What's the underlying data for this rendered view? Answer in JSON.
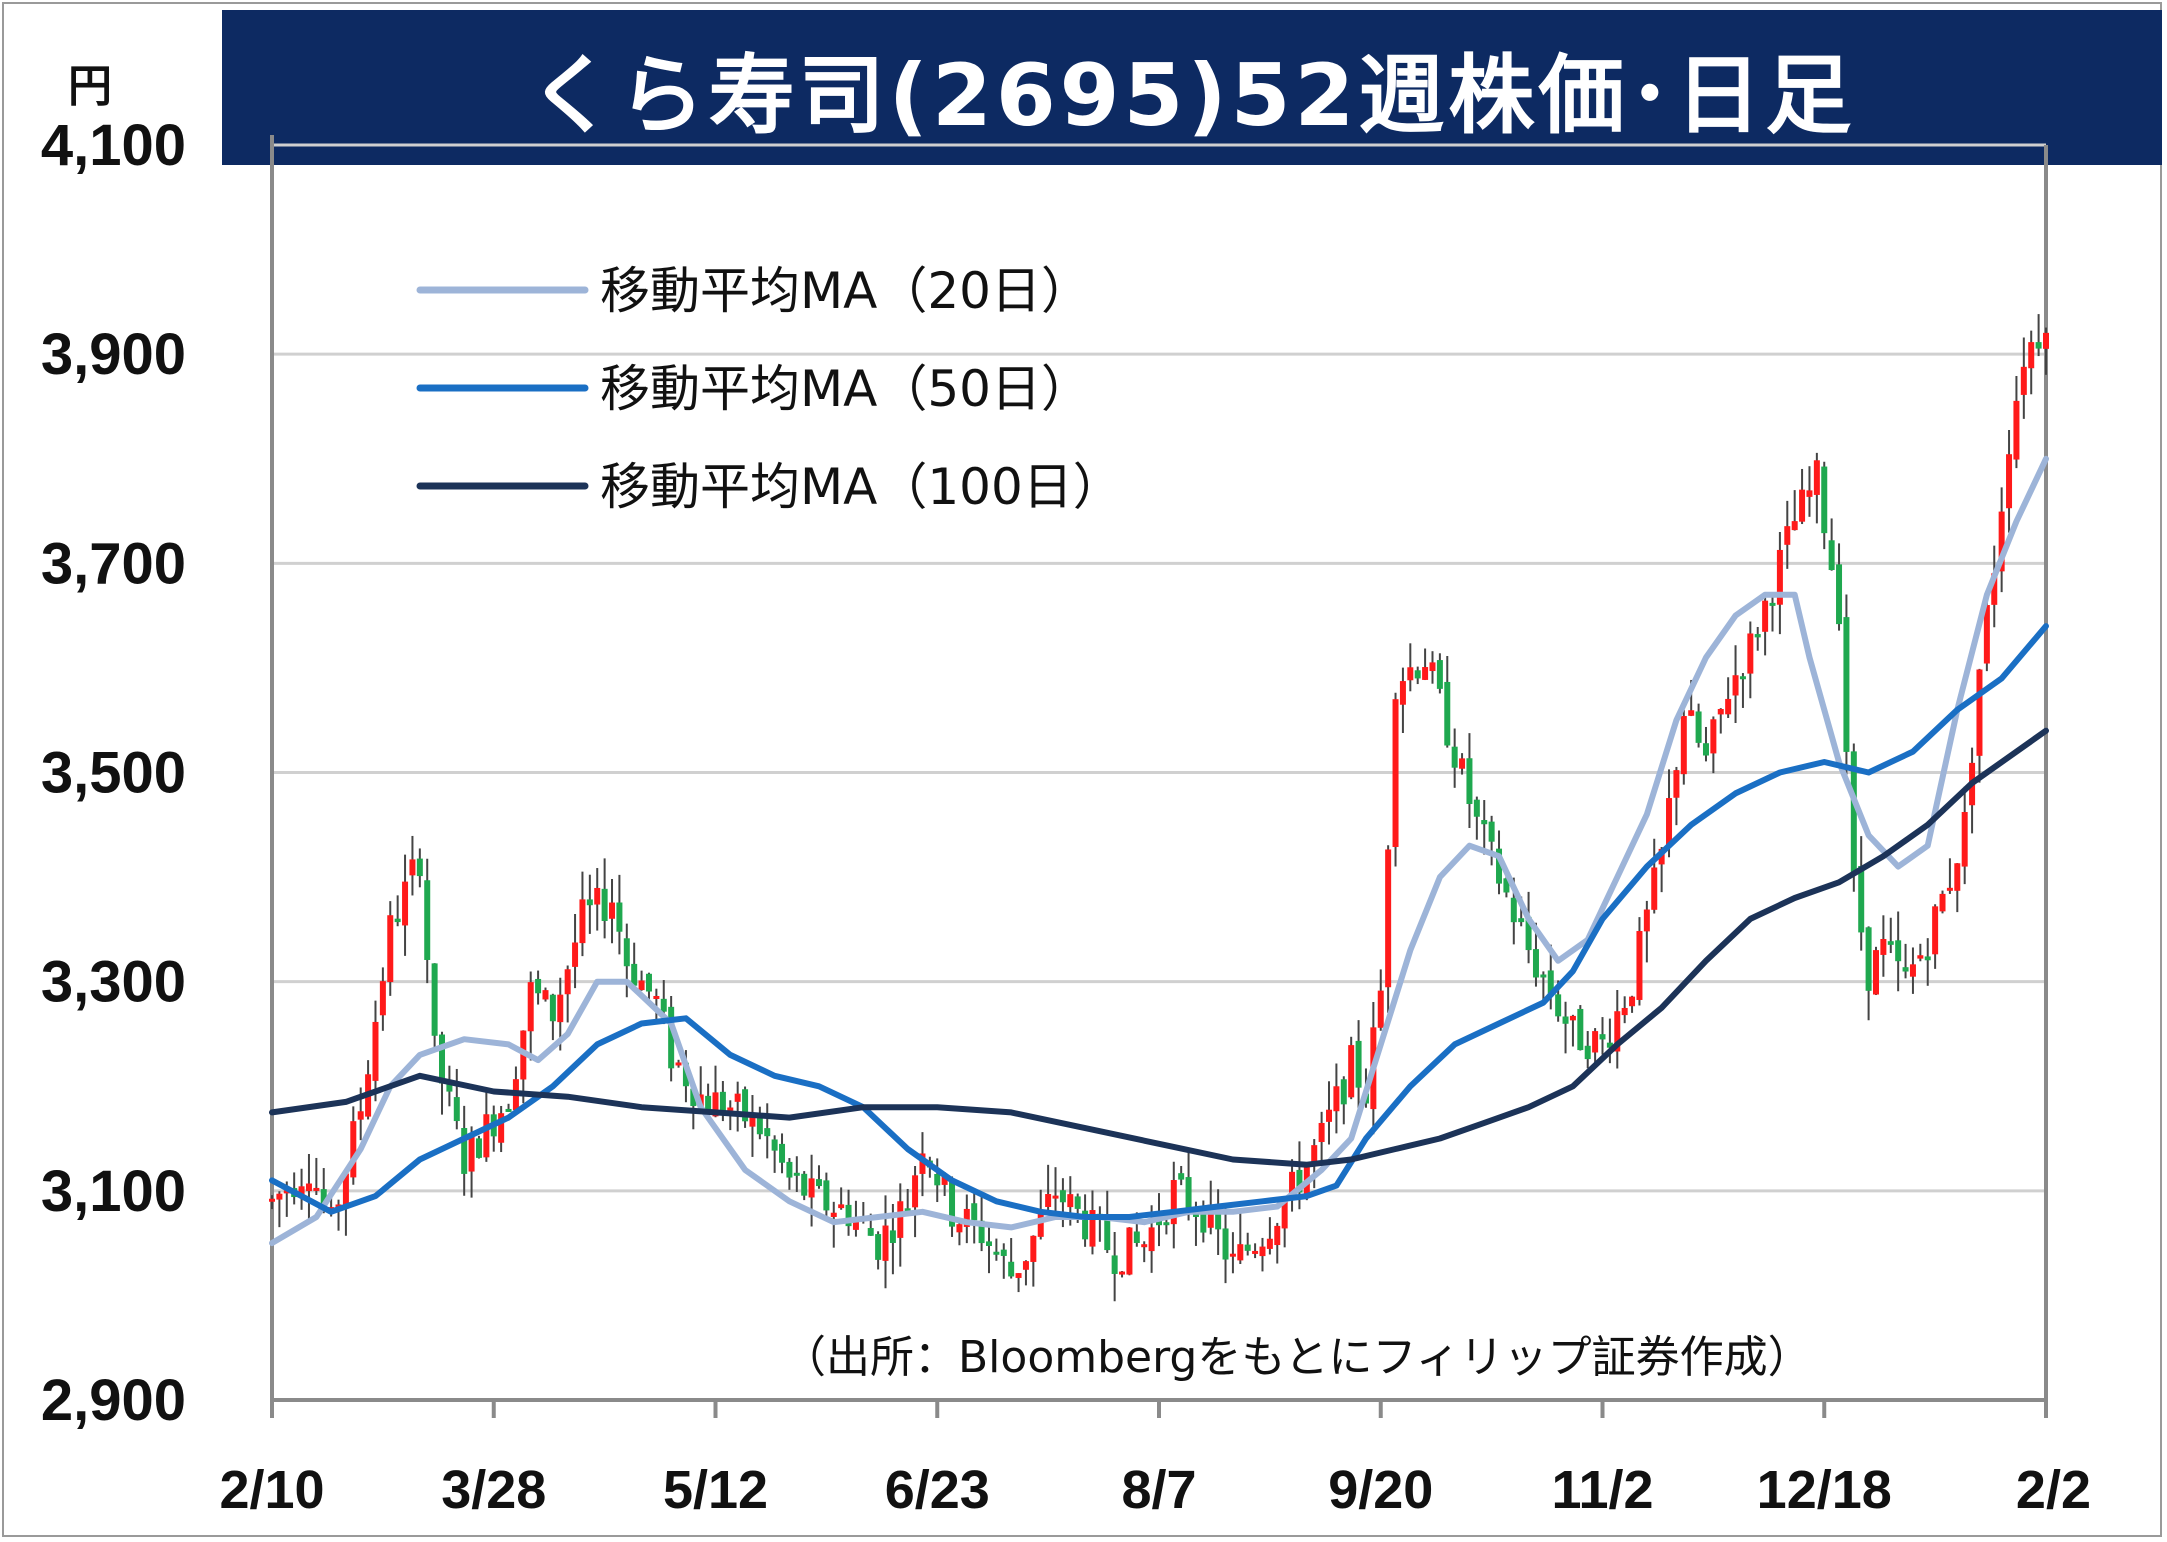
{
  "title": "くら寿司(2695)52週株価･日足",
  "y_unit": "円",
  "source": "（出所：Bloombergをもとにフィリップ証券作成）",
  "colors": {
    "title_bg": "#0d2a62",
    "title_text": "#ffffff",
    "up_candle": "#ff1a1a",
    "down_candle": "#1fa84f",
    "wick": "#444444",
    "ma20": "#9db4d8",
    "ma50": "#1a6fc4",
    "ma100": "#1c3358",
    "grid": "#d0d0d0"
  },
  "chart_data": {
    "type": "candlestick",
    "title": "くら寿司(2695)52週株価･日足",
    "ylabel": "円",
    "ylim": [
      2900,
      4100
    ],
    "yticks": [
      2900,
      3100,
      3300,
      3500,
      3700,
      3900,
      4100
    ],
    "ytick_labels": [
      "2,900",
      "3,100",
      "3,300",
      "3,500",
      "3,700",
      "3,900",
      "4,100"
    ],
    "xlim": [
      0,
      240
    ],
    "xticks": [
      {
        "label": "2/10",
        "x": 0
      },
      {
        "label": "3/28",
        "x": 30
      },
      {
        "label": "5/12",
        "x": 60
      },
      {
        "label": "6/23",
        "x": 90
      },
      {
        "label": "8/7",
        "x": 120
      },
      {
        "label": "9/20",
        "x": 150
      },
      {
        "label": "11/2",
        "x": 180
      },
      {
        "label": "12/18",
        "x": 210
      },
      {
        "label": "2/2",
        "x": 240
      }
    ],
    "grid": "horizontal",
    "legend": {
      "position": "top-left",
      "entries": [
        "移動平均MA（20日）",
        "移動平均MA（50日）",
        "移動平均MA（100日）"
      ]
    },
    "price_path": [
      [
        0,
        3090
      ],
      [
        5,
        3125
      ],
      [
        8,
        3065
      ],
      [
        12,
        3180
      ],
      [
        16,
        3350
      ],
      [
        20,
        3420
      ],
      [
        22,
        3230
      ],
      [
        26,
        3130
      ],
      [
        30,
        3170
      ],
      [
        32,
        3190
      ],
      [
        35,
        3290
      ],
      [
        38,
        3270
      ],
      [
        42,
        3360
      ],
      [
        46,
        3380
      ],
      [
        48,
        3320
      ],
      [
        52,
        3280
      ],
      [
        54,
        3230
      ],
      [
        58,
        3190
      ],
      [
        62,
        3180
      ],
      [
        66,
        3160
      ],
      [
        70,
        3110
      ],
      [
        74,
        3090
      ],
      [
        78,
        3080
      ],
      [
        82,
        3050
      ],
      [
        86,
        3090
      ],
      [
        88,
        3150
      ],
      [
        92,
        3080
      ],
      [
        96,
        3060
      ],
      [
        100,
        3020
      ],
      [
        102,
        3040
      ],
      [
        106,
        3100
      ],
      [
        110,
        3070
      ],
      [
        114,
        3040
      ],
      [
        118,
        3050
      ],
      [
        122,
        3100
      ],
      [
        126,
        3080
      ],
      [
        130,
        3030
      ],
      [
        134,
        3060
      ],
      [
        138,
        3100
      ],
      [
        142,
        3150
      ],
      [
        146,
        3220
      ],
      [
        148,
        3195
      ],
      [
        150,
        3290
      ],
      [
        152,
        3590
      ],
      [
        156,
        3610
      ],
      [
        160,
        3520
      ],
      [
        163,
        3450
      ],
      [
        166,
        3400
      ],
      [
        170,
        3330
      ],
      [
        173,
        3290
      ],
      [
        176,
        3250
      ],
      [
        180,
        3240
      ],
      [
        184,
        3300
      ],
      [
        188,
        3420
      ],
      [
        191,
        3560
      ],
      [
        194,
        3510
      ],
      [
        197,
        3580
      ],
      [
        200,
        3620
      ],
      [
        203,
        3680
      ],
      [
        206,
        3740
      ],
      [
        209,
        3780
      ],
      [
        212,
        3660
      ],
      [
        214,
        3390
      ],
      [
        216,
        3310
      ],
      [
        218,
        3330
      ],
      [
        221,
        3300
      ],
      [
        224,
        3340
      ],
      [
        227,
        3400
      ],
      [
        229,
        3450
      ],
      [
        231,
        3600
      ],
      [
        233,
        3700
      ],
      [
        235,
        3820
      ],
      [
        237,
        3900
      ],
      [
        239,
        3920
      ],
      [
        240,
        3940
      ]
    ],
    "series": [
      {
        "name": "移動平均MA（20日）",
        "color": "#9db4d8",
        "points": [
          [
            0,
            3050
          ],
          [
            6,
            3075
          ],
          [
            12,
            3140
          ],
          [
            16,
            3200
          ],
          [
            20,
            3230
          ],
          [
            26,
            3245
          ],
          [
            32,
            3240
          ],
          [
            36,
            3225
          ],
          [
            40,
            3250
          ],
          [
            44,
            3300
          ],
          [
            48,
            3300
          ],
          [
            54,
            3260
          ],
          [
            58,
            3180
          ],
          [
            64,
            3120
          ],
          [
            70,
            3090
          ],
          [
            76,
            3070
          ],
          [
            82,
            3075
          ],
          [
            88,
            3080
          ],
          [
            94,
            3070
          ],
          [
            100,
            3065
          ],
          [
            106,
            3075
          ],
          [
            112,
            3075
          ],
          [
            118,
            3070
          ],
          [
            124,
            3080
          ],
          [
            130,
            3080
          ],
          [
            136,
            3085
          ],
          [
            142,
            3120
          ],
          [
            146,
            3150
          ],
          [
            150,
            3240
          ],
          [
            154,
            3330
          ],
          [
            158,
            3400
          ],
          [
            162,
            3430
          ],
          [
            166,
            3420
          ],
          [
            170,
            3360
          ],
          [
            174,
            3320
          ],
          [
            178,
            3340
          ],
          [
            182,
            3400
          ],
          [
            186,
            3460
          ],
          [
            190,
            3550
          ],
          [
            194,
            3610
          ],
          [
            198,
            3650
          ],
          [
            202,
            3670
          ],
          [
            206,
            3670
          ],
          [
            208,
            3610
          ],
          [
            212,
            3510
          ],
          [
            216,
            3440
          ],
          [
            220,
            3410
          ],
          [
            224,
            3430
          ],
          [
            228,
            3560
          ],
          [
            232,
            3670
          ],
          [
            236,
            3740
          ],
          [
            240,
            3800
          ]
        ]
      },
      {
        "name": "移動平均MA（50日）",
        "color": "#1a6fc4",
        "points": [
          [
            0,
            3110
          ],
          [
            8,
            3080
          ],
          [
            14,
            3095
          ],
          [
            20,
            3130
          ],
          [
            26,
            3150
          ],
          [
            32,
            3170
          ],
          [
            38,
            3200
          ],
          [
            44,
            3240
          ],
          [
            50,
            3260
          ],
          [
            56,
            3265
          ],
          [
            62,
            3230
          ],
          [
            68,
            3210
          ],
          [
            74,
            3200
          ],
          [
            80,
            3180
          ],
          [
            86,
            3140
          ],
          [
            92,
            3110
          ],
          [
            98,
            3090
          ],
          [
            104,
            3080
          ],
          [
            110,
            3075
          ],
          [
            116,
            3075
          ],
          [
            122,
            3080
          ],
          [
            128,
            3085
          ],
          [
            134,
            3090
          ],
          [
            140,
            3095
          ],
          [
            144,
            3105
          ],
          [
            148,
            3150
          ],
          [
            154,
            3200
          ],
          [
            160,
            3240
          ],
          [
            166,
            3260
          ],
          [
            172,
            3280
          ],
          [
            176,
            3310
          ],
          [
            180,
            3360
          ],
          [
            186,
            3410
          ],
          [
            192,
            3450
          ],
          [
            198,
            3480
          ],
          [
            204,
            3500
          ],
          [
            210,
            3510
          ],
          [
            216,
            3500
          ],
          [
            222,
            3520
          ],
          [
            228,
            3560
          ],
          [
            234,
            3590
          ],
          [
            240,
            3640
          ]
        ]
      },
      {
        "name": "移動平均MA（100日）",
        "color": "#1c3358",
        "points": [
          [
            0,
            3175
          ],
          [
            10,
            3185
          ],
          [
            20,
            3210
          ],
          [
            30,
            3195
          ],
          [
            40,
            3190
          ],
          [
            50,
            3180
          ],
          [
            60,
            3175
          ],
          [
            70,
            3170
          ],
          [
            80,
            3180
          ],
          [
            90,
            3180
          ],
          [
            100,
            3175
          ],
          [
            110,
            3160
          ],
          [
            120,
            3145
          ],
          [
            130,
            3130
          ],
          [
            140,
            3125
          ],
          [
            146,
            3130
          ],
          [
            152,
            3140
          ],
          [
            158,
            3150
          ],
          [
            164,
            3165
          ],
          [
            170,
            3180
          ],
          [
            176,
            3200
          ],
          [
            182,
            3240
          ],
          [
            188,
            3275
          ],
          [
            194,
            3320
          ],
          [
            200,
            3360
          ],
          [
            206,
            3380
          ],
          [
            212,
            3395
          ],
          [
            218,
            3420
          ],
          [
            224,
            3450
          ],
          [
            230,
            3490
          ],
          [
            240,
            3540
          ]
        ]
      }
    ]
  }
}
